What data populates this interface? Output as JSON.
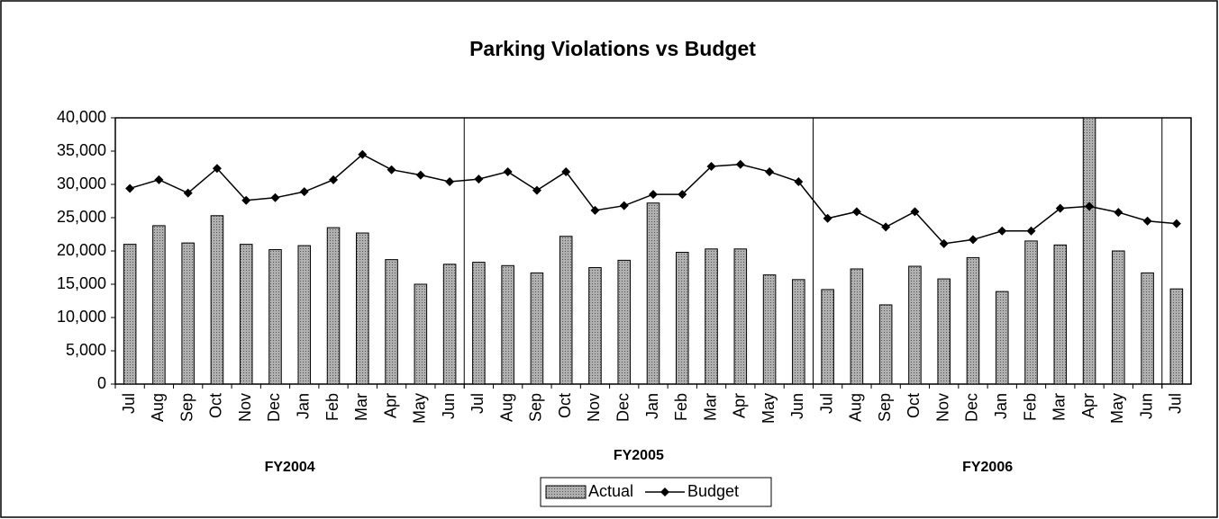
{
  "chart_data": {
    "type": "bar_line",
    "title": "Parking Violations vs Budget",
    "categories": [
      "Jul",
      "Aug",
      "Sep",
      "Oct",
      "Nov",
      "Dec",
      "Jan",
      "Feb",
      "Mar",
      "Apr",
      "May",
      "Jun",
      "Jul",
      "Aug",
      "Sep",
      "Oct",
      "Nov",
      "Dec",
      "Jan",
      "Feb",
      "Mar",
      "Apr",
      "May",
      "Jun",
      "Jul",
      "Aug",
      "Sep",
      "Oct",
      "Nov",
      "Dec",
      "Jan",
      "Feb",
      "Mar",
      "Apr",
      "May",
      "Jun",
      "Jul"
    ],
    "x_groups": [
      {
        "label": "FY2004",
        "span": 12
      },
      {
        "label": "FY2005",
        "span": 12
      },
      {
        "label": "FY2006",
        "span": 12
      }
    ],
    "series": [
      {
        "name": "Actual",
        "type": "bar",
        "color": "#a0a0a0",
        "values": [
          21000,
          23800,
          21200,
          25300,
          21000,
          20200,
          20800,
          23500,
          22700,
          18700,
          15000,
          18000,
          18300,
          17800,
          16700,
          22200,
          17500,
          18600,
          27200,
          19800,
          20300,
          20300,
          16400,
          15700,
          14200,
          17300,
          11900,
          17700,
          15800,
          19000,
          13900,
          21500,
          20900,
          40000,
          20000,
          16700,
          14300
        ]
      },
      {
        "name": "Budget",
        "type": "line",
        "color": "#000000",
        "values": [
          29400,
          30700,
          28700,
          32400,
          27600,
          28000,
          28900,
          30700,
          34500,
          32200,
          31400,
          30400,
          30800,
          31900,
          29100,
          31900,
          26100,
          26800,
          28500,
          28500,
          32700,
          33000,
          31900,
          30400,
          24900,
          25900,
          23600,
          25900,
          21100,
          21700,
          23000,
          23000,
          26400,
          26700,
          25800,
          24500,
          24100
        ]
      }
    ],
    "ylim": [
      0,
      40000
    ],
    "yticks": [
      0,
      {
        "value": 5000,
        "label": "5,000"
      },
      {
        "value": 10000,
        "label": "10,000"
      },
      {
        "value": 15000,
        "label": "15,000"
      },
      {
        "value": 20000,
        "label": "20,000"
      },
      {
        "value": 25000,
        "label": "25,000"
      },
      {
        "value": 30000,
        "label": "30,000"
      },
      {
        "value": 35000,
        "label": "35,000"
      },
      {
        "value": 40000,
        "label": "40,000"
      }
    ],
    "legend": "bottom"
  }
}
